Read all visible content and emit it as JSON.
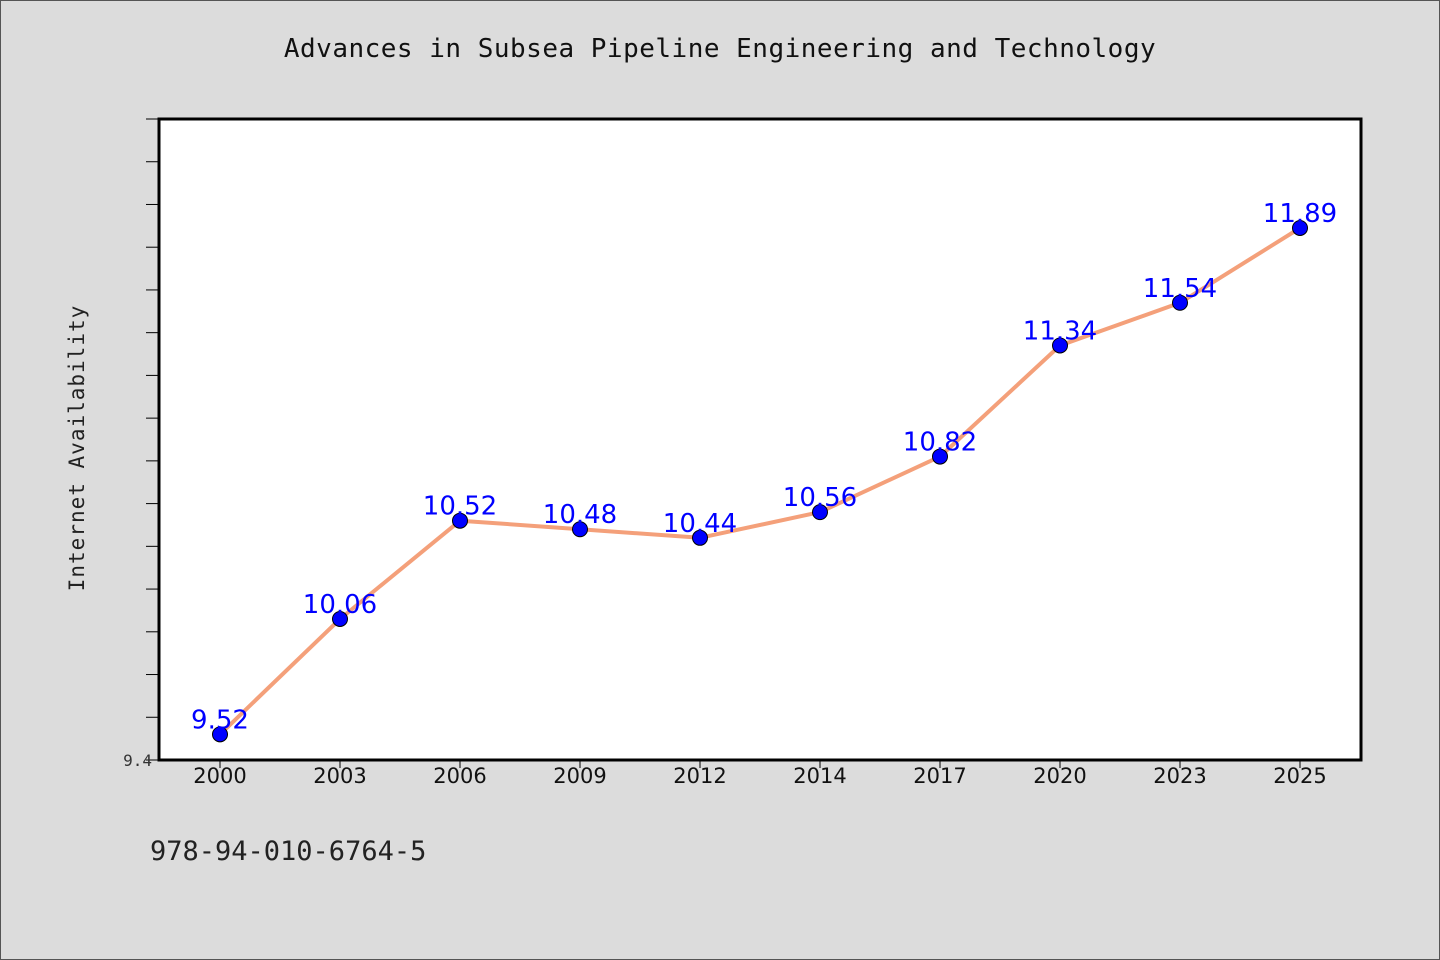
{
  "chart_data": {
    "type": "line",
    "title": "Advances in Subsea Pipeline Engineering and Technology",
    "xlabel": "",
    "ylabel": "Internet Availability",
    "categories": [
      "2000",
      "2003",
      "2006",
      "2009",
      "2012",
      "2014",
      "2017",
      "2020",
      "2023",
      "2025"
    ],
    "series": [
      {
        "values": [
          9.52,
          10.06,
          10.52,
          10.48,
          10.44,
          10.56,
          10.82,
          11.34,
          11.54,
          11.89
        ],
        "data_labels": [
          "9.52",
          "10.06",
          "10.52",
          "10.48",
          "10.44",
          "10.56",
          "10.82",
          "11.34",
          "11.54",
          "11.89"
        ],
        "line_color": "#f4a07a",
        "marker_color": "#0000ff"
      }
    ],
    "ylim": [
      9.4,
      12.4
    ],
    "y_min_label": "9.4",
    "grid": false,
    "legend": "none",
    "plot_background": "#ffffff",
    "figure_background": "#dcdcdc"
  },
  "footer": {
    "isbn": "978-94-010-6764-5"
  }
}
